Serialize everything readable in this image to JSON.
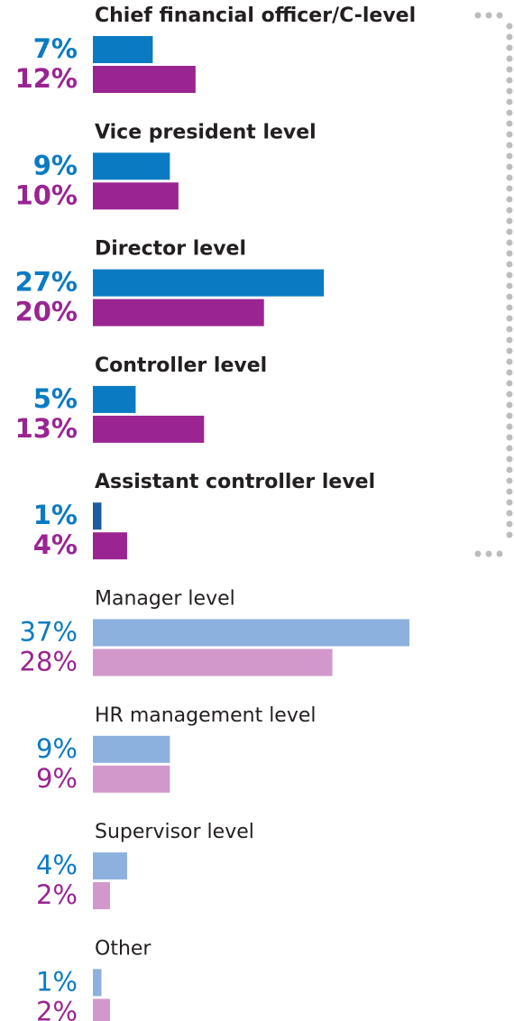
{
  "chart_data": {
    "type": "bar",
    "orientation": "horizontal",
    "categories": [
      "Chief financial officer/C-level",
      "Vice president level",
      "Director level",
      "Controller level",
      "Assistant controller level",
      "Manager level",
      "HR management level",
      "Supervisor level",
      "Other"
    ],
    "highlight": [
      true,
      true,
      true,
      true,
      true,
      false,
      false,
      false,
      false
    ],
    "series": [
      {
        "color": "#0a7bc2",
        "colors": [
          "#0a7bc2",
          "#0a7bc2",
          "#0a7bc2",
          "#0a7bc2",
          "#1b5c9e",
          "#8db1de",
          "#8db1de",
          "#8db1de",
          "#8db1de"
        ],
        "values": [
          7,
          9,
          27,
          5,
          1,
          37,
          9,
          4,
          1
        ],
        "value_labels": [
          "7%",
          "9%",
          "27%",
          "5%",
          "1%",
          "37%",
          "9%",
          "4%",
          "1%"
        ]
      },
      {
        "color": "#9a2492",
        "colors": [
          "#9a2492",
          "#9a2492",
          "#9a2492",
          "#9a2492",
          "#9a2492",
          "#d398cb",
          "#d398cb",
          "#d398cb",
          "#d398cb"
        ],
        "values": [
          12,
          10,
          20,
          13,
          4,
          28,
          9,
          2,
          2
        ],
        "value_labels": [
          "12%",
          "10%",
          "20%",
          "13%",
          "4%",
          "28%",
          "9%",
          "2%",
          "2%"
        ]
      }
    ]
  }
}
